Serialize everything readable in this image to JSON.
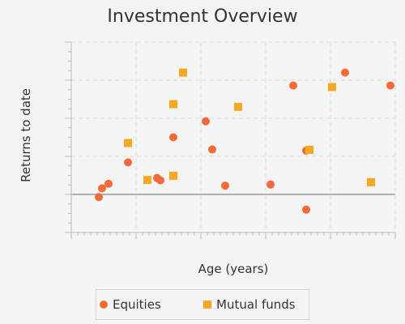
{
  "chart_data": {
    "type": "scatter",
    "title": "Investment Overview",
    "xlabel": "Age (years)",
    "ylabel": "Returns to date",
    "xlim": [
      0,
      100
    ],
    "ylim": [
      -1,
      4
    ],
    "grid": true,
    "legend_position": "bottom",
    "series": [
      {
        "name": "Equities",
        "marker": "circle",
        "color": "#f26b38",
        "points": [
          {
            "x": 8.5,
            "y": -0.07
          },
          {
            "x": 9.5,
            "y": 0.16
          },
          {
            "x": 11.5,
            "y": 0.28
          },
          {
            "x": 17.5,
            "y": 0.84
          },
          {
            "x": 26.5,
            "y": 0.43
          },
          {
            "x": 27.5,
            "y": 0.37
          },
          {
            "x": 31.5,
            "y": 1.5
          },
          {
            "x": 41.5,
            "y": 1.92
          },
          {
            "x": 43.5,
            "y": 1.18
          },
          {
            "x": 47.5,
            "y": 0.23
          },
          {
            "x": 61.5,
            "y": 0.26
          },
          {
            "x": 68.5,
            "y": 2.86
          },
          {
            "x": 72.5,
            "y": 1.15
          },
          {
            "x": 72.5,
            "y": -0.4
          },
          {
            "x": 84.5,
            "y": 3.2
          },
          {
            "x": 98.5,
            "y": 2.86
          }
        ]
      },
      {
        "name": "Mutual funds",
        "marker": "square",
        "color": "#f7a823",
        "points": [
          {
            "x": 17.5,
            "y": 1.35
          },
          {
            "x": 23.5,
            "y": 0.38
          },
          {
            "x": 31.5,
            "y": 0.49
          },
          {
            "x": 31.5,
            "y": 2.37
          },
          {
            "x": 34.5,
            "y": 3.2
          },
          {
            "x": 51.5,
            "y": 2.3
          },
          {
            "x": 73.5,
            "y": 1.17
          },
          {
            "x": 80.5,
            "y": 2.82
          },
          {
            "x": 92.5,
            "y": 0.32
          }
        ]
      }
    ]
  }
}
